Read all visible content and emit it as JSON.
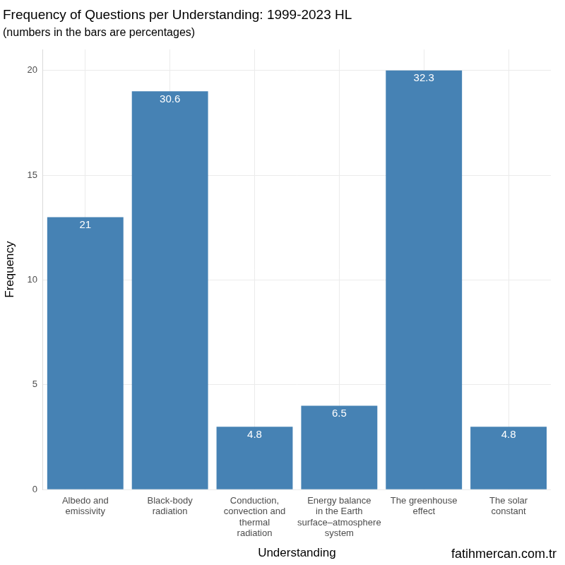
{
  "chart_data": {
    "type": "bar",
    "title": "Frequency of Questions per Understanding: 1999-2023 HL",
    "subtitle": "(numbers in the bars are percentages)",
    "x_label": "Understanding",
    "y_label": "Frequency",
    "categories": [
      "Albedo and emissivity",
      "Black-body radiation",
      "Conduction, convection and thermal radiation",
      "Energy balance in the Earth surface–atmosphere system",
      "The greenhouse effect",
      "The solar constant"
    ],
    "values": [
      13,
      19,
      3,
      4,
      20,
      3
    ],
    "percentages": [
      21,
      30.6,
      4.8,
      6.5,
      32.3,
      4.8
    ],
    "color": "#4682b4",
    "ylim": [
      0,
      21
    ],
    "yticks": [
      0,
      5,
      10,
      15,
      20
    ],
    "grid": true,
    "source": "fatihmercan.com.tr"
  }
}
